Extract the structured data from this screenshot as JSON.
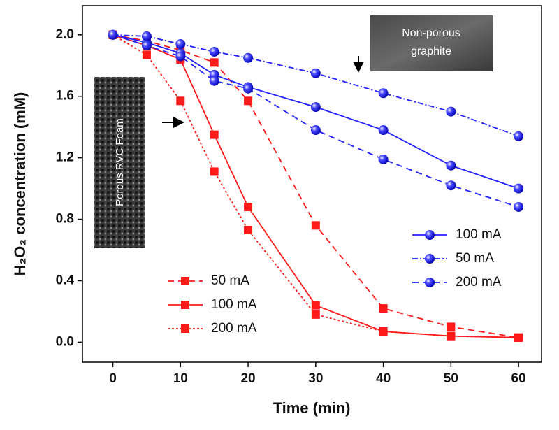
{
  "chart_data": {
    "type": "line",
    "xlabel": "Time (min)",
    "ylabel": "H₂O₂ concentration (mM)",
    "x": [
      0,
      5,
      10,
      15,
      20,
      30,
      40,
      50,
      60
    ],
    "xlim": [
      -4.5,
      63.4
    ],
    "ylim": [
      -0.13,
      2.19
    ],
    "xticks": [
      0,
      10,
      20,
      30,
      40,
      50,
      60
    ],
    "yticks": [
      {
        "value": 0,
        "label": "0.0"
      },
      {
        "value": 0.4,
        "label": "0.4"
      },
      {
        "value": 0.8,
        "label": "0.8"
      },
      {
        "value": 1.2,
        "label": "1.2"
      },
      {
        "value": 1.6,
        "label": "1.6"
      },
      {
        "value": 2,
        "label": "2.0"
      }
    ],
    "annotations": {
      "porous": "Porous RVC Foam",
      "nonporous": [
        "Non-porous",
        "graphite"
      ]
    },
    "series": [
      {
        "name": "50 mA",
        "color": "#ff1a1a",
        "marker": "square",
        "dash": "dashed",
        "values": [
          2.0,
          1.96,
          1.9,
          1.82,
          1.57,
          0.76,
          0.22,
          0.1,
          0.03
        ]
      },
      {
        "name": "100 mA",
        "color": "#ff1a1a",
        "marker": "square",
        "dash": "solid",
        "values": [
          2.0,
          1.93,
          1.84,
          1.35,
          0.88,
          0.24,
          0.07,
          0.04,
          0.03
        ]
      },
      {
        "name": "200 mA",
        "color": "#ff1a1a",
        "marker": "square",
        "dash": "dotted",
        "values": [
          2.0,
          1.87,
          1.57,
          1.11,
          0.73,
          0.18,
          0.07,
          0.04,
          0.03
        ]
      },
      {
        "name": "100 mA",
        "color": "#2222ff",
        "marker": "circle",
        "dash": "solid",
        "values": [
          2.0,
          1.95,
          1.88,
          1.74,
          1.66,
          1.53,
          1.38,
          1.15,
          1.0
        ]
      },
      {
        "name": "50 mA",
        "color": "#2222ff",
        "marker": "circle",
        "dash": "dashdot",
        "values": [
          2.0,
          1.99,
          1.94,
          1.89,
          1.85,
          1.75,
          1.62,
          1.5,
          1.34
        ]
      },
      {
        "name": "200 mA",
        "color": "#2222ff",
        "marker": "circle",
        "dash": "dashed",
        "values": [
          2.0,
          1.93,
          1.86,
          1.7,
          1.65,
          1.38,
          1.19,
          1.02,
          0.88
        ]
      }
    ]
  }
}
